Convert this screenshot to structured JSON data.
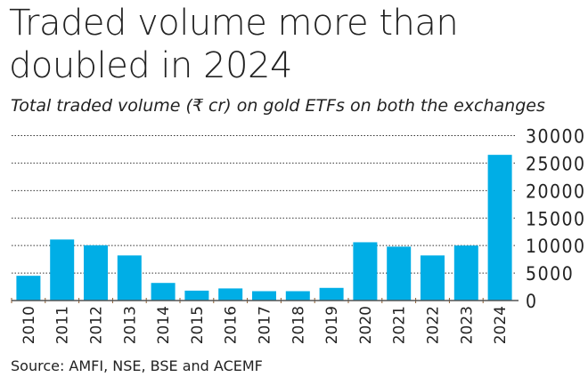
{
  "chart_data": {
    "type": "bar",
    "title": "Traded volume more than doubled in 2024",
    "subtitle": "Total traded volume (₹ cr) on gold ETFs on both the exchanges",
    "source": "Source: AMFI, NSE, BSE and ACEMF",
    "categories": [
      "2010",
      "2011",
      "2012",
      "2013",
      "2014",
      "2015",
      "2016",
      "2017",
      "2018",
      "2019",
      "2020",
      "2021",
      "2022",
      "2023",
      "2024"
    ],
    "values": [
      4500,
      11100,
      10050,
      8200,
      3200,
      1800,
      2200,
      1700,
      1700,
      2300,
      10600,
      9800,
      8200,
      10000,
      26500
    ],
    "ylim": [
      0,
      30000
    ],
    "yticks": [
      "0",
      "5000",
      "10000",
      "15000",
      "20000",
      "25000",
      "30000"
    ],
    "grid": true,
    "y_axis_position": "right",
    "bar_color": "#00aee6"
  }
}
